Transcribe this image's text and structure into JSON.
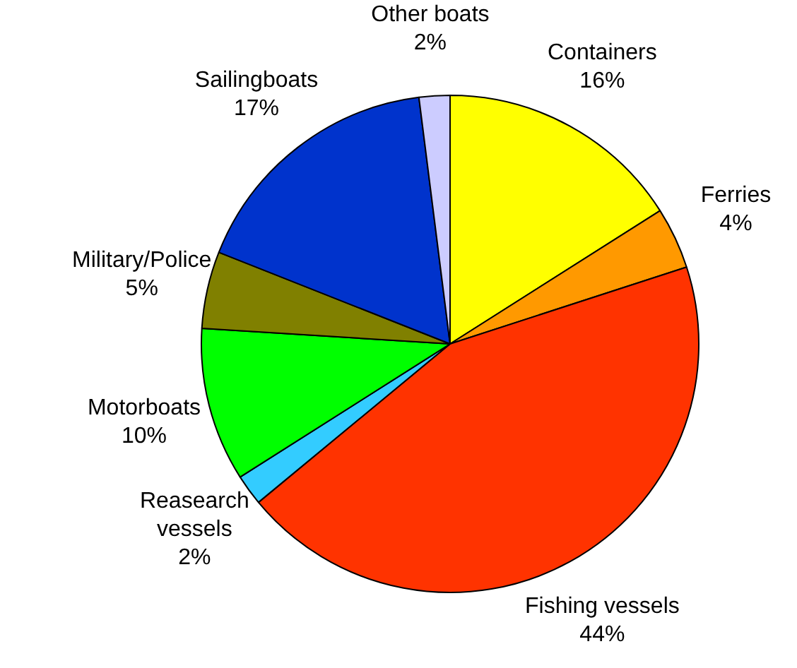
{
  "chart_data": {
    "type": "pie",
    "categories": [
      "Containers",
      "Ferries",
      "Fishing vessels",
      "Reasearch\nvessels",
      "Motorboats",
      "Military/Police",
      "Sailingboats",
      "Other boats"
    ],
    "values": [
      16,
      4,
      44,
      2,
      10,
      5,
      17,
      2
    ],
    "value_labels": [
      "16%",
      "4%",
      "44%",
      "2%",
      "10%",
      "5%",
      "17%",
      "2%"
    ],
    "colors": [
      "#ffff00",
      "#ff9900",
      "#ff3300",
      "#33ccff",
      "#00ff00",
      "#808000",
      "#0033cc",
      "#ccccff"
    ],
    "legend": false
  }
}
